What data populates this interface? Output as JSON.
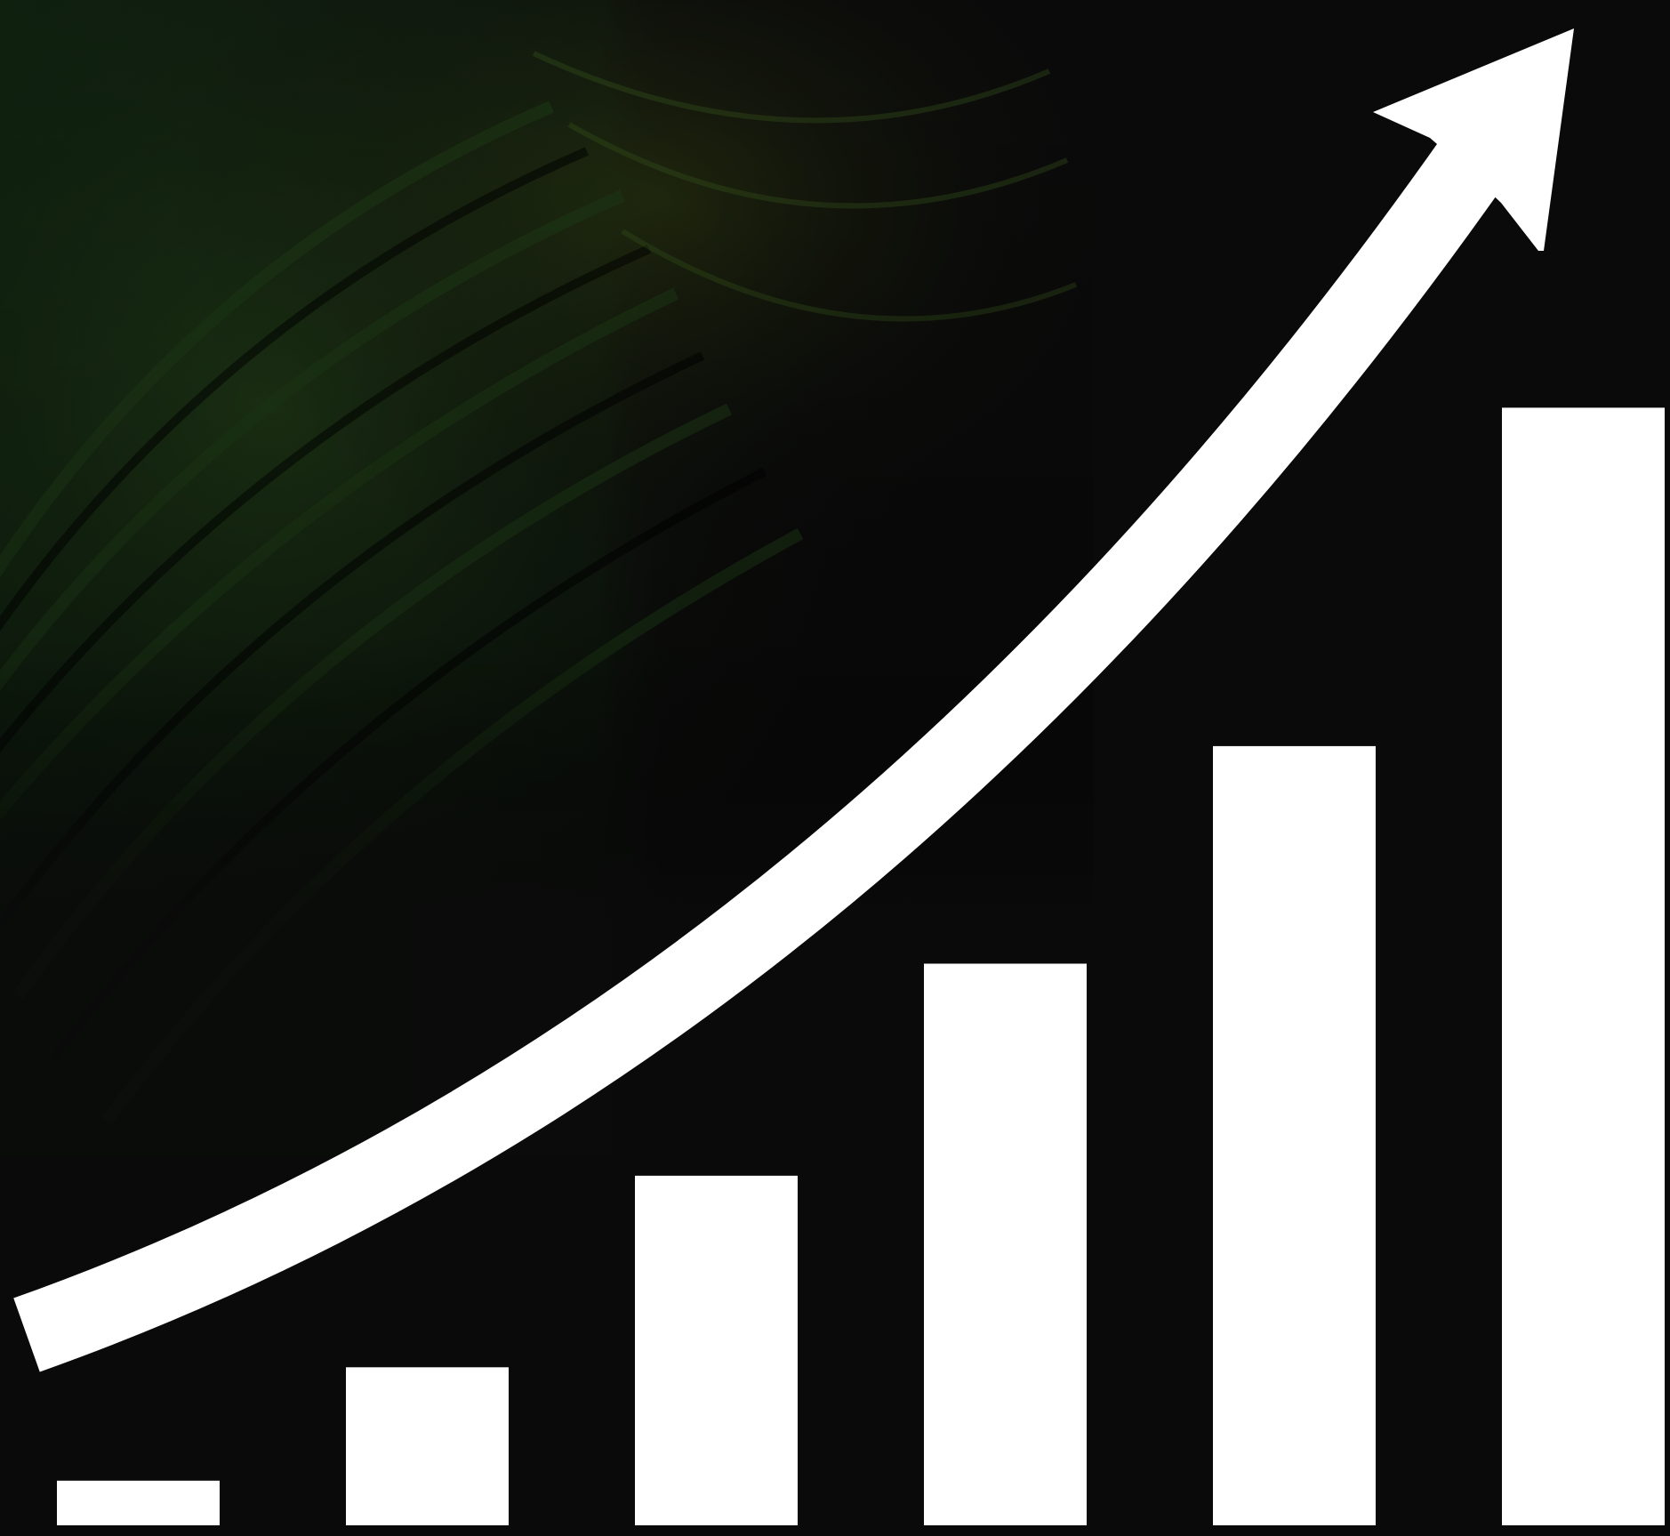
{
  "colors": {
    "background": "#0a0a0a",
    "marks": "#ffffff",
    "texture_dark_green": "#0f2410",
    "texture_mid_green": "#2a4a1a",
    "texture_olive": "#3a4a12"
  },
  "chart_data": {
    "type": "bar",
    "title": "",
    "xlabel": "",
    "ylabel": "",
    "categories": [
      "",
      "",
      "",
      "",
      "",
      ""
    ],
    "values": [
      4.8,
      17,
      37.6,
      60.4,
      83.8,
      120.2
    ],
    "ylim": [
      0,
      121
    ],
    "grid": false,
    "legend": "none",
    "annotations": [
      {
        "kind": "trend-arrow",
        "direction": "up-right",
        "shape": "curved"
      }
    ]
  }
}
